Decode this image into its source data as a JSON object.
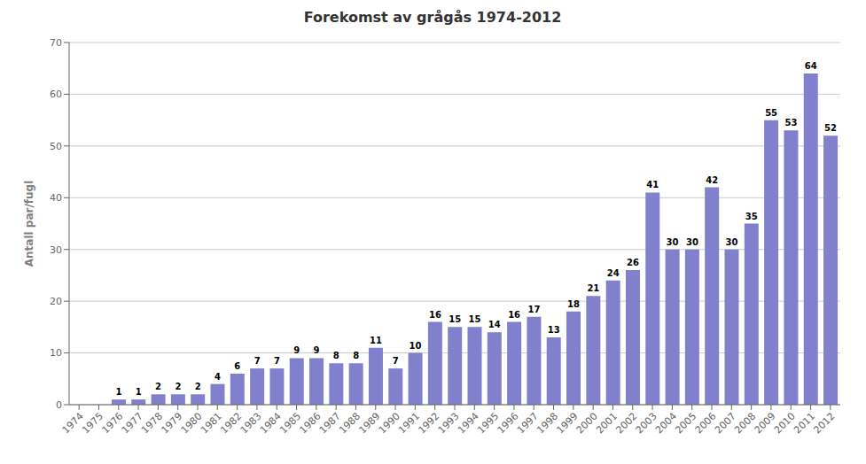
{
  "chart_data": {
    "type": "bar",
    "title": "Forekomst av grågås 1974-2012",
    "ylabel": "Antall par/fugl",
    "categories": [
      "1974",
      "1975",
      "1976",
      "1977",
      "1978",
      "1979",
      "1980",
      "1981",
      "1982",
      "1983",
      "1984",
      "1985",
      "1986",
      "1987",
      "1988",
      "1989",
      "1990",
      "1991",
      "1992",
      "1993",
      "1994",
      "1995",
      "1996",
      "1997",
      "1998",
      "1999",
      "2000",
      "2001",
      "2002",
      "2003",
      "2004",
      "2005",
      "2006",
      "2007",
      "2008",
      "2009",
      "2010",
      "2011",
      "2012"
    ],
    "values": [
      0,
      0,
      1,
      1,
      2,
      2,
      2,
      4,
      6,
      7,
      7,
      9,
      9,
      8,
      8,
      11,
      7,
      10,
      16,
      15,
      15,
      14,
      16,
      17,
      13,
      18,
      21,
      24,
      26,
      41,
      30,
      30,
      42,
      30,
      35,
      55,
      53,
      64,
      52
    ],
    "color": "#8080cc",
    "ylim": [
      0,
      70
    ],
    "yticks": [
      0,
      10,
      20,
      30,
      40,
      50,
      60,
      70
    ],
    "grid": true,
    "data_labels": true
  }
}
